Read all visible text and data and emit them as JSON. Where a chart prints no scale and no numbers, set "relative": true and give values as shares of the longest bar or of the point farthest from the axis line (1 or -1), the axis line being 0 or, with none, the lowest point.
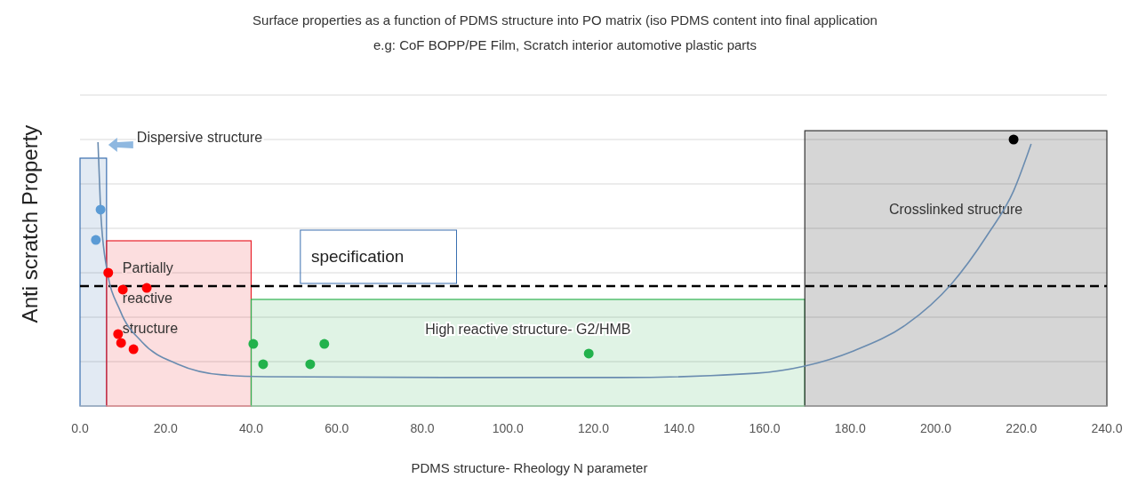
{
  "chart_data": {
    "type": "scatter",
    "title": "Surface properties as a function of PDMS structure into PO matrix (iso PDMS content into final application",
    "subtitle": "e.g:  CoF BOPP/PE Film, Scratch  interior automotive plastic parts",
    "xlabel": "PDMS structure- Rheology N parameter",
    "ylabel": "Anti scratch Property",
    "relative": true,
    "grid": "y",
    "xlim": [
      0,
      240
    ],
    "xticks": [
      {
        "value": 0,
        "label": "0.0"
      },
      {
        "value": 20,
        "label": "20.0"
      },
      {
        "value": 40,
        "label": "40.0"
      },
      {
        "value": 60,
        "label": "60.0"
      },
      {
        "value": 80,
        "label": "80.0"
      },
      {
        "value": 100,
        "label": "100.0"
      },
      {
        "value": 120,
        "label": "120.0"
      },
      {
        "value": 140,
        "label": "140.0"
      },
      {
        "value": 160,
        "label": "160.0"
      },
      {
        "value": 180,
        "label": "180.0"
      },
      {
        "value": 200,
        "label": "200.0"
      },
      {
        "value": 220,
        "label": "220.0"
      },
      {
        "value": 240,
        "label": "240.0"
      }
    ],
    "bands": [
      {
        "axis": "x",
        "from": 0,
        "to": 6.2,
        "label": "Dispersive structure",
        "color": "#3a6fb0"
      },
      {
        "axis": "x",
        "from": 6.2,
        "to": 40,
        "label": "Partially reactive structure",
        "color": "#e8202a"
      },
      {
        "axis": "x",
        "from": 40,
        "to": 169.4,
        "label": "High reactive structure- G2/HMB",
        "color": "#2fb150"
      },
      {
        "axis": "x",
        "from": 169.4,
        "to": 240,
        "label": "Crosslinked structure",
        "color": "#333333"
      }
    ],
    "ref_lines": [
      {
        "axis": "y",
        "value": 0.45,
        "color": "#000000",
        "line_style": "dashed"
      }
    ],
    "annotations": [
      "specification"
    ],
    "series": [
      {
        "type": "line",
        "color": "#6a8cb0",
        "marker": "none",
        "x": [
          4.2,
          4.8,
          6.2,
          9.4,
          14.5,
          22.9,
          33.2,
          43.6,
          85.2,
          126.8,
          157.9,
          169.4,
          180.8,
          193.2,
          203.6,
          212,
          218.2,
          222.3
        ],
        "values": [
          0.99,
          0.74,
          0.52,
          0.357,
          0.24,
          0.157,
          0.117,
          0.11,
          0.107,
          0.107,
          0.123,
          0.15,
          0.207,
          0.307,
          0.457,
          0.64,
          0.807,
          0.983
        ]
      },
      {
        "color": "#5b9bd5",
        "marker": "circle",
        "x": [
          4.8,
          3.7
        ],
        "values": [
          0.737,
          0.623
        ]
      },
      {
        "color": "#ff0000",
        "marker": "circle",
        "x": [
          6.6,
          10,
          15.6,
          8.9,
          9.6,
          12.5
        ],
        "values": [
          0.5,
          0.437,
          0.443,
          0.27,
          0.237,
          0.213
        ]
      },
      {
        "color": "#22b24c",
        "marker": "circle",
        "x": [
          40.5,
          42.8,
          53.8,
          57.1,
          118.9
        ],
        "values": [
          0.233,
          0.157,
          0.157,
          0.233,
          0.197
        ]
      },
      {
        "color": "#000000",
        "marker": "circle",
        "x": [
          218.2
        ],
        "values": [
          1
        ]
      }
    ]
  }
}
